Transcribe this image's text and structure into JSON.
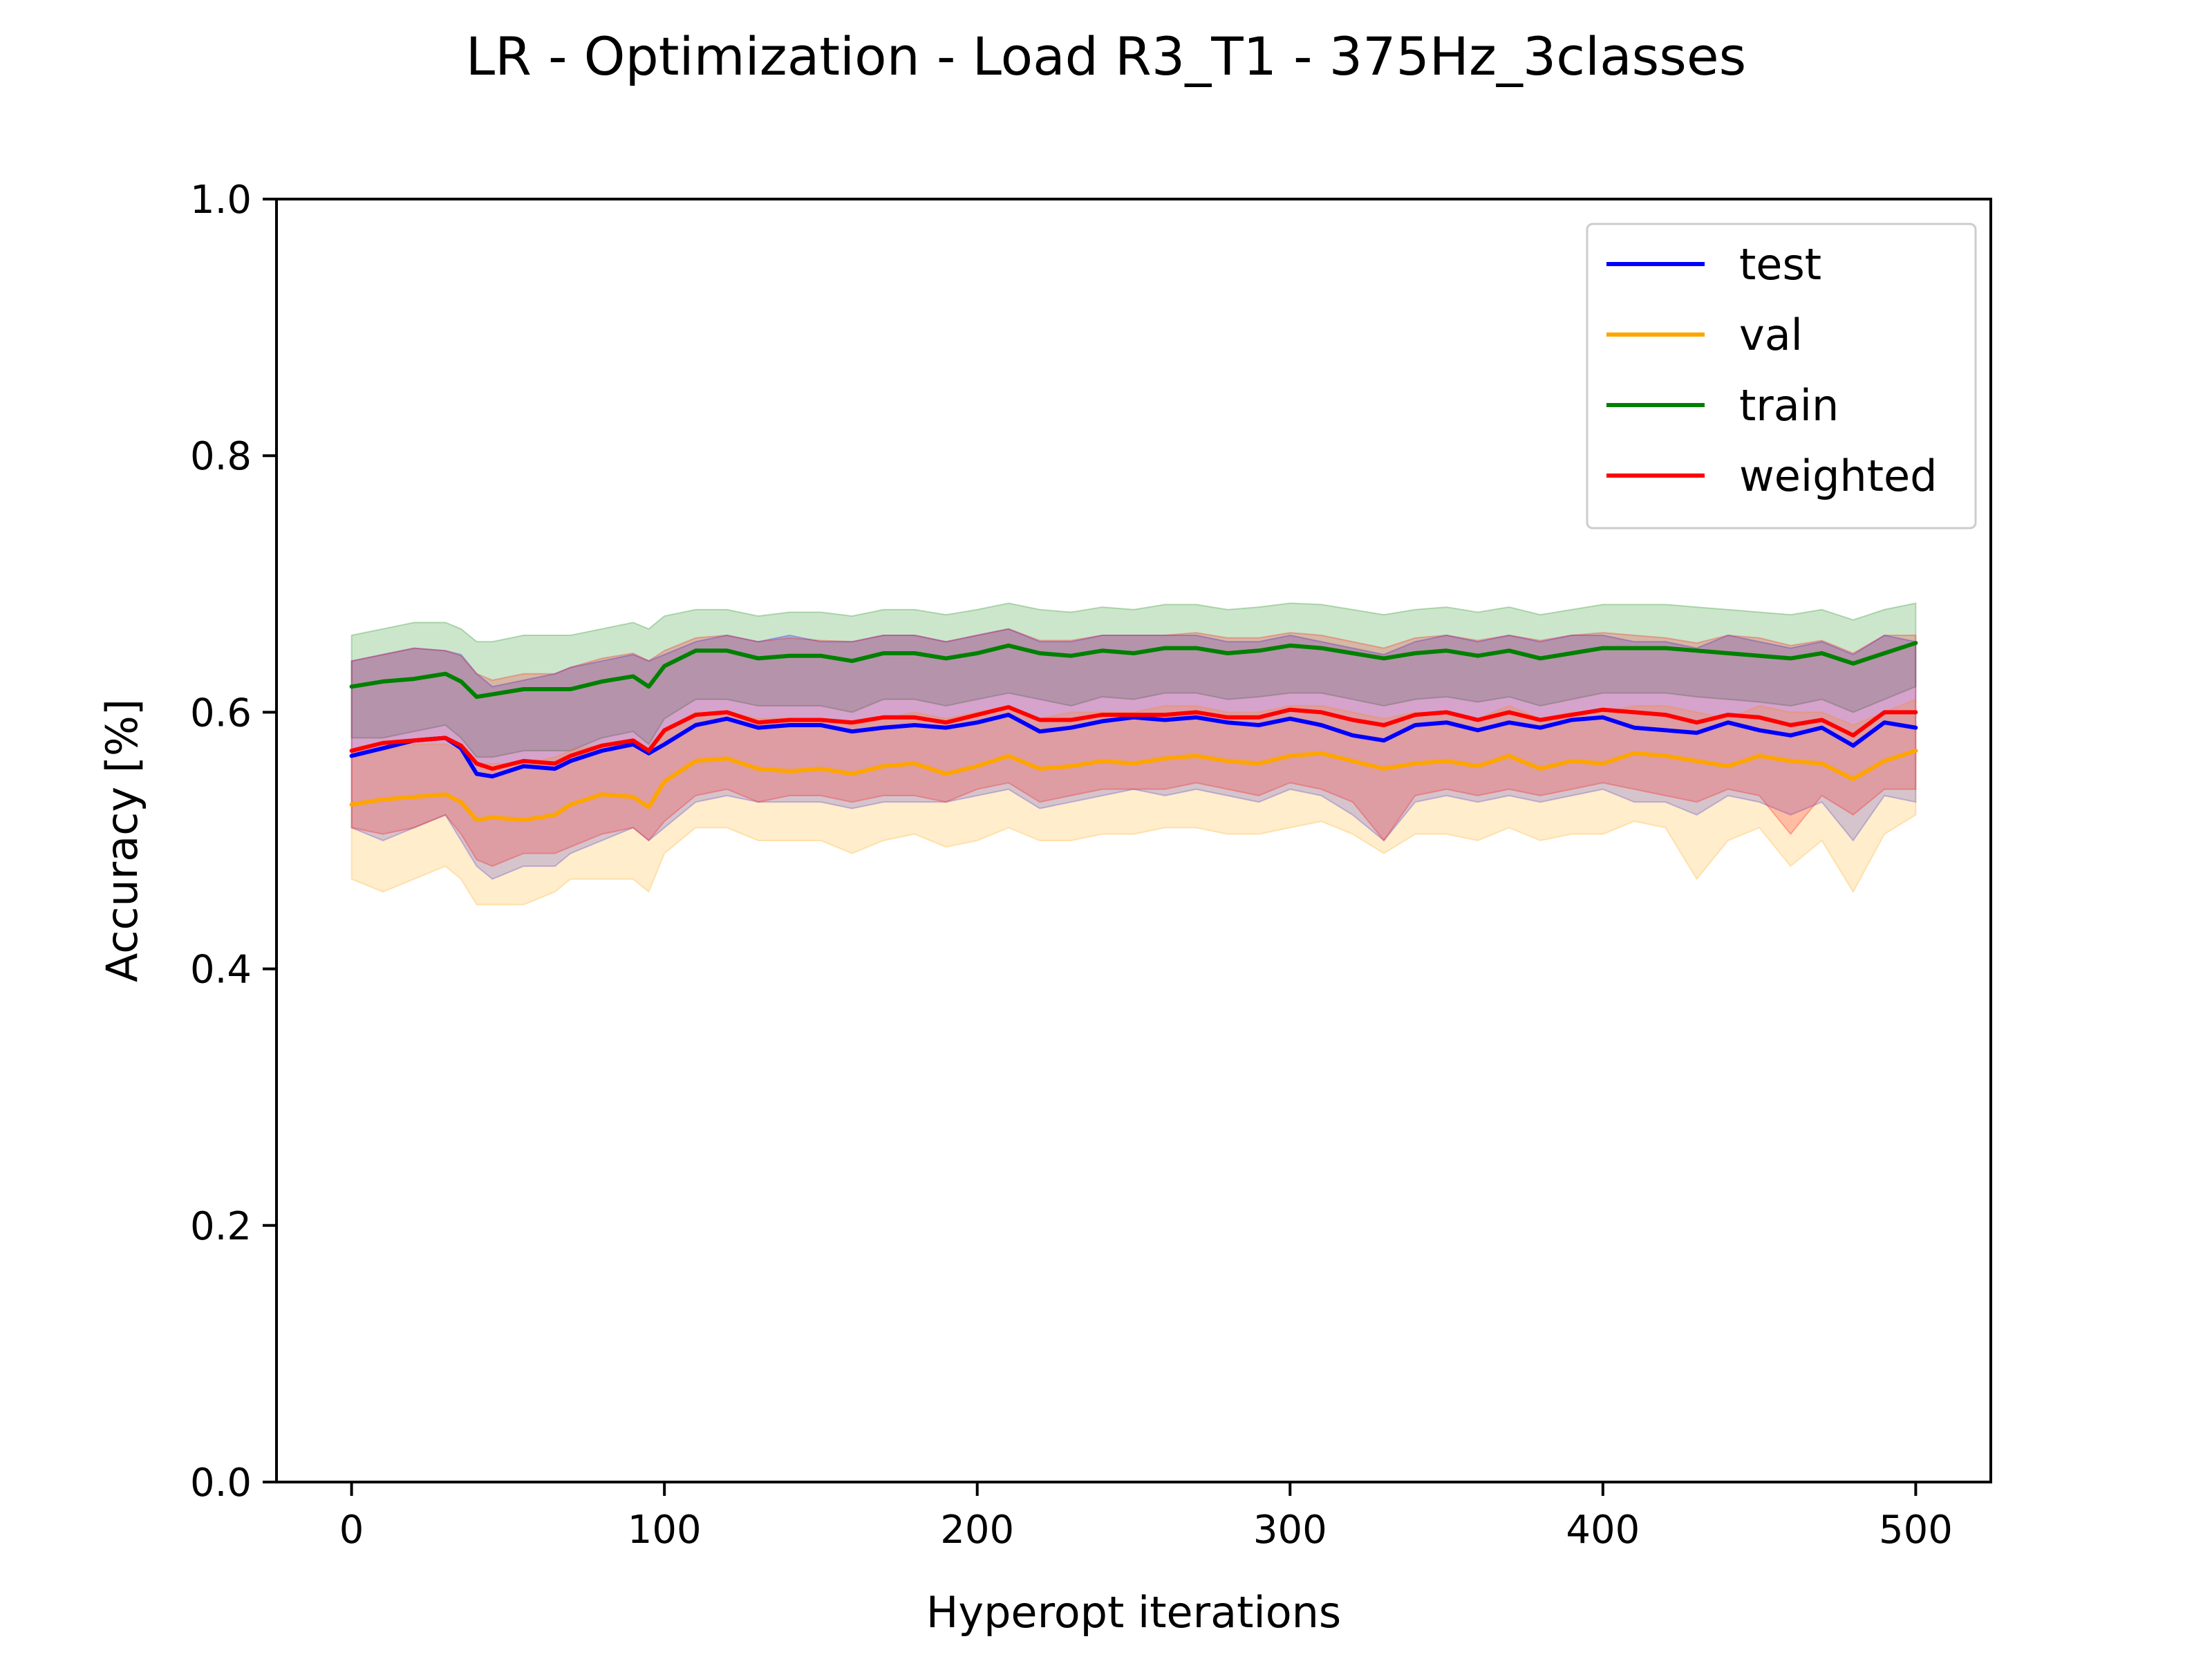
{
  "chart_data": {
    "type": "line",
    "title": "LR - Optimization - Load R3_T1 - 375Hz_3classes",
    "xlabel": "Hyperopt iterations",
    "ylabel": "Accuracy [%]",
    "xlim": [
      -24,
      524
    ],
    "ylim": [
      0.0,
      1.0
    ],
    "xticks": [
      0,
      100,
      200,
      300,
      400,
      500
    ],
    "yticks": [
      0.0,
      0.2,
      0.4,
      0.6,
      0.8,
      1.0
    ],
    "xtick_labels": [
      "0",
      "100",
      "200",
      "300",
      "400",
      "500"
    ],
    "ytick_labels": [
      "0.0",
      "0.2",
      "0.4",
      "0.6",
      "0.8",
      "1.0"
    ],
    "grid": false,
    "legend_position": "top-right",
    "series": [
      {
        "name": "test",
        "color": "#0000ff",
        "x": [
          0,
          10,
          20,
          30,
          35,
          40,
          45,
          55,
          65,
          70,
          80,
          90,
          95,
          100,
          110,
          120,
          130,
          140,
          150,
          160,
          170,
          180,
          190,
          200,
          210,
          220,
          230,
          240,
          250,
          260,
          270,
          280,
          290,
          300,
          310,
          320,
          330,
          340,
          350,
          360,
          370,
          380,
          390,
          400,
          410,
          420,
          430,
          440,
          450,
          460,
          470,
          480,
          490,
          500
        ],
        "y": [
          0.566,
          0.572,
          0.578,
          0.58,
          0.572,
          0.552,
          0.55,
          0.558,
          0.556,
          0.562,
          0.57,
          0.575,
          0.568,
          0.575,
          0.59,
          0.595,
          0.588,
          0.59,
          0.59,
          0.585,
          0.588,
          0.59,
          0.588,
          0.592,
          0.598,
          0.585,
          0.588,
          0.593,
          0.596,
          0.594,
          0.596,
          0.592,
          0.59,
          0.595,
          0.59,
          0.582,
          0.578,
          0.59,
          0.592,
          0.586,
          0.592,
          0.588,
          0.594,
          0.596,
          0.588,
          0.586,
          0.584,
          0.592,
          0.586,
          0.582,
          0.588,
          0.574,
          0.592,
          0.588
        ],
        "band_upper": [
          0.64,
          0.645,
          0.65,
          0.648,
          0.645,
          0.63,
          0.62,
          0.625,
          0.63,
          0.635,
          0.64,
          0.645,
          0.64,
          0.645,
          0.655,
          0.66,
          0.655,
          0.66,
          0.655,
          0.655,
          0.66,
          0.66,
          0.655,
          0.66,
          0.665,
          0.655,
          0.655,
          0.66,
          0.66,
          0.66,
          0.66,
          0.655,
          0.655,
          0.66,
          0.655,
          0.65,
          0.645,
          0.655,
          0.66,
          0.655,
          0.66,
          0.655,
          0.66,
          0.66,
          0.655,
          0.655,
          0.65,
          0.66,
          0.655,
          0.65,
          0.655,
          0.645,
          0.66,
          0.655
        ],
        "band_lower": [
          0.51,
          0.5,
          0.51,
          0.52,
          0.5,
          0.48,
          0.47,
          0.48,
          0.48,
          0.49,
          0.5,
          0.51,
          0.5,
          0.51,
          0.53,
          0.535,
          0.53,
          0.53,
          0.53,
          0.525,
          0.53,
          0.53,
          0.53,
          0.535,
          0.54,
          0.525,
          0.53,
          0.535,
          0.54,
          0.535,
          0.54,
          0.535,
          0.53,
          0.54,
          0.535,
          0.52,
          0.5,
          0.53,
          0.535,
          0.53,
          0.535,
          0.53,
          0.535,
          0.54,
          0.53,
          0.53,
          0.52,
          0.535,
          0.53,
          0.52,
          0.53,
          0.5,
          0.535,
          0.53
        ]
      },
      {
        "name": "val",
        "color": "#ffa500",
        "x": [
          0,
          10,
          20,
          30,
          35,
          40,
          45,
          55,
          65,
          70,
          80,
          90,
          95,
          100,
          110,
          120,
          130,
          140,
          150,
          160,
          170,
          180,
          190,
          200,
          210,
          220,
          230,
          240,
          250,
          260,
          270,
          280,
          290,
          300,
          310,
          320,
          330,
          340,
          350,
          360,
          370,
          380,
          390,
          400,
          410,
          420,
          430,
          440,
          450,
          460,
          470,
          480,
          490,
          500
        ],
        "y": [
          0.528,
          0.532,
          0.534,
          0.536,
          0.53,
          0.516,
          0.518,
          0.516,
          0.52,
          0.528,
          0.536,
          0.534,
          0.526,
          0.546,
          0.562,
          0.564,
          0.556,
          0.554,
          0.556,
          0.552,
          0.558,
          0.56,
          0.552,
          0.558,
          0.566,
          0.556,
          0.558,
          0.562,
          0.56,
          0.564,
          0.566,
          0.562,
          0.56,
          0.566,
          0.568,
          0.562,
          0.556,
          0.56,
          0.562,
          0.558,
          0.566,
          0.556,
          0.562,
          0.56,
          0.568,
          0.566,
          0.562,
          0.558,
          0.566,
          0.562,
          0.56,
          0.548,
          0.562,
          0.57
        ],
        "band_upper": [
          0.57,
          0.57,
          0.575,
          0.575,
          0.57,
          0.56,
          0.56,
          0.56,
          0.565,
          0.57,
          0.575,
          0.575,
          0.57,
          0.585,
          0.6,
          0.6,
          0.595,
          0.595,
          0.595,
          0.59,
          0.595,
          0.6,
          0.595,
          0.6,
          0.605,
          0.595,
          0.6,
          0.6,
          0.6,
          0.605,
          0.605,
          0.6,
          0.6,
          0.605,
          0.605,
          0.6,
          0.595,
          0.6,
          0.6,
          0.595,
          0.605,
          0.595,
          0.6,
          0.6,
          0.605,
          0.605,
          0.6,
          0.595,
          0.605,
          0.6,
          0.6,
          0.59,
          0.6,
          0.61
        ],
        "band_lower": [
          0.47,
          0.46,
          0.47,
          0.48,
          0.47,
          0.45,
          0.45,
          0.45,
          0.46,
          0.47,
          0.47,
          0.47,
          0.46,
          0.49,
          0.51,
          0.51,
          0.5,
          0.5,
          0.5,
          0.49,
          0.5,
          0.505,
          0.495,
          0.5,
          0.51,
          0.5,
          0.5,
          0.505,
          0.505,
          0.51,
          0.51,
          0.505,
          0.505,
          0.51,
          0.515,
          0.505,
          0.49,
          0.505,
          0.505,
          0.5,
          0.51,
          0.5,
          0.505,
          0.505,
          0.515,
          0.51,
          0.47,
          0.5,
          0.51,
          0.48,
          0.5,
          0.46,
          0.505,
          0.52
        ]
      },
      {
        "name": "train",
        "color": "#008000",
        "x": [
          0,
          10,
          20,
          30,
          35,
          40,
          45,
          55,
          65,
          70,
          80,
          90,
          95,
          100,
          110,
          120,
          130,
          140,
          150,
          160,
          170,
          180,
          190,
          200,
          210,
          220,
          230,
          240,
          250,
          260,
          270,
          280,
          290,
          300,
          310,
          320,
          330,
          340,
          350,
          360,
          370,
          380,
          390,
          400,
          410,
          420,
          430,
          440,
          450,
          460,
          470,
          480,
          490,
          500
        ],
        "y": [
          0.62,
          0.624,
          0.626,
          0.63,
          0.624,
          0.612,
          0.614,
          0.618,
          0.618,
          0.618,
          0.624,
          0.628,
          0.62,
          0.636,
          0.648,
          0.648,
          0.642,
          0.644,
          0.644,
          0.64,
          0.646,
          0.646,
          0.642,
          0.646,
          0.652,
          0.646,
          0.644,
          0.648,
          0.646,
          0.65,
          0.65,
          0.646,
          0.648,
          0.652,
          0.65,
          0.646,
          0.642,
          0.646,
          0.648,
          0.644,
          0.648,
          0.642,
          0.646,
          0.65,
          0.65,
          0.65,
          0.648,
          0.646,
          0.644,
          0.642,
          0.646,
          0.638,
          0.646,
          0.654
        ],
        "band_upper": [
          0.66,
          0.665,
          0.67,
          0.67,
          0.665,
          0.655,
          0.655,
          0.66,
          0.66,
          0.66,
          0.665,
          0.67,
          0.665,
          0.675,
          0.68,
          0.68,
          0.675,
          0.678,
          0.678,
          0.675,
          0.68,
          0.68,
          0.676,
          0.68,
          0.685,
          0.68,
          0.678,
          0.682,
          0.68,
          0.684,
          0.684,
          0.68,
          0.682,
          0.685,
          0.684,
          0.68,
          0.676,
          0.68,
          0.682,
          0.678,
          0.682,
          0.676,
          0.68,
          0.684,
          0.684,
          0.684,
          0.682,
          0.68,
          0.678,
          0.676,
          0.68,
          0.672,
          0.68,
          0.685
        ],
        "band_lower": [
          0.58,
          0.58,
          0.585,
          0.59,
          0.58,
          0.565,
          0.565,
          0.57,
          0.57,
          0.57,
          0.58,
          0.585,
          0.575,
          0.595,
          0.61,
          0.61,
          0.605,
          0.605,
          0.605,
          0.6,
          0.61,
          0.61,
          0.605,
          0.61,
          0.615,
          0.61,
          0.605,
          0.612,
          0.61,
          0.615,
          0.615,
          0.61,
          0.612,
          0.615,
          0.615,
          0.61,
          0.605,
          0.61,
          0.612,
          0.608,
          0.612,
          0.605,
          0.61,
          0.615,
          0.615,
          0.615,
          0.612,
          0.61,
          0.608,
          0.605,
          0.61,
          0.6,
          0.61,
          0.62
        ]
      },
      {
        "name": "weighted",
        "color": "#ff0000",
        "x": [
          0,
          10,
          20,
          30,
          35,
          40,
          45,
          55,
          65,
          70,
          80,
          90,
          95,
          100,
          110,
          120,
          130,
          140,
          150,
          160,
          170,
          180,
          190,
          200,
          210,
          220,
          230,
          240,
          250,
          260,
          270,
          280,
          290,
          300,
          310,
          320,
          330,
          340,
          350,
          360,
          370,
          380,
          390,
          400,
          410,
          420,
          430,
          440,
          450,
          460,
          470,
          480,
          490,
          500
        ],
        "y": [
          0.57,
          0.576,
          0.578,
          0.58,
          0.574,
          0.56,
          0.556,
          0.562,
          0.56,
          0.566,
          0.574,
          0.578,
          0.57,
          0.586,
          0.598,
          0.6,
          0.592,
          0.594,
          0.594,
          0.592,
          0.596,
          0.596,
          0.592,
          0.598,
          0.604,
          0.594,
          0.594,
          0.598,
          0.598,
          0.598,
          0.6,
          0.596,
          0.596,
          0.602,
          0.6,
          0.594,
          0.59,
          0.598,
          0.6,
          0.594,
          0.6,
          0.594,
          0.598,
          0.602,
          0.6,
          0.598,
          0.592,
          0.598,
          0.596,
          0.59,
          0.594,
          0.582,
          0.6,
          0.6
        ],
        "band_upper": [
          0.64,
          0.645,
          0.65,
          0.648,
          0.644,
          0.63,
          0.625,
          0.63,
          0.63,
          0.635,
          0.642,
          0.646,
          0.64,
          0.648,
          0.658,
          0.66,
          0.655,
          0.658,
          0.656,
          0.655,
          0.66,
          0.66,
          0.655,
          0.66,
          0.665,
          0.656,
          0.656,
          0.66,
          0.66,
          0.66,
          0.662,
          0.658,
          0.658,
          0.662,
          0.66,
          0.655,
          0.65,
          0.658,
          0.66,
          0.656,
          0.66,
          0.656,
          0.66,
          0.662,
          0.66,
          0.658,
          0.654,
          0.66,
          0.658,
          0.652,
          0.656,
          0.646,
          0.66,
          0.66
        ],
        "band_lower": [
          0.51,
          0.505,
          0.51,
          0.52,
          0.505,
          0.485,
          0.48,
          0.49,
          0.49,
          0.495,
          0.505,
          0.51,
          0.5,
          0.515,
          0.535,
          0.54,
          0.53,
          0.535,
          0.535,
          0.53,
          0.535,
          0.535,
          0.53,
          0.54,
          0.545,
          0.53,
          0.535,
          0.54,
          0.54,
          0.54,
          0.545,
          0.54,
          0.535,
          0.545,
          0.54,
          0.53,
          0.5,
          0.535,
          0.54,
          0.535,
          0.54,
          0.535,
          0.54,
          0.545,
          0.54,
          0.535,
          0.53,
          0.54,
          0.535,
          0.505,
          0.535,
          0.52,
          0.54,
          0.54
        ]
      }
    ]
  }
}
